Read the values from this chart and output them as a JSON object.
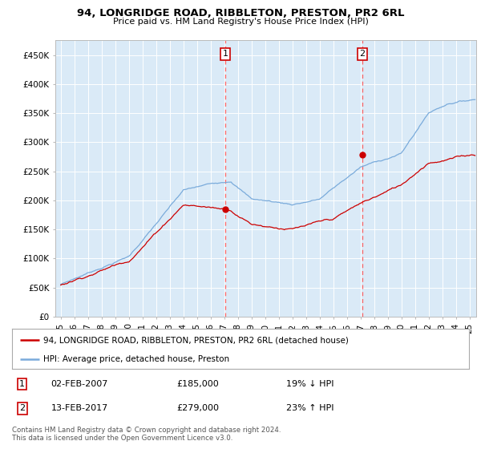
{
  "title": "94, LONGRIDGE ROAD, RIBBLETON, PRESTON, PR2 6RL",
  "subtitle": "Price paid vs. HM Land Registry's House Price Index (HPI)",
  "yticks": [
    0,
    50000,
    100000,
    150000,
    200000,
    250000,
    300000,
    350000,
    400000,
    450000
  ],
  "ytick_labels": [
    "£0",
    "£50K",
    "£100K",
    "£150K",
    "£200K",
    "£250K",
    "£300K",
    "£350K",
    "£400K",
    "£450K"
  ],
  "xlim_start": 1994.6,
  "xlim_end": 2025.5,
  "ylim_min": 0,
  "ylim_max": 475000,
  "sale1_date": 2007.08,
  "sale1_price": 185000,
  "sale1_label": "1",
  "sale2_date": 2017.12,
  "sale2_price": 279000,
  "sale2_label": "2",
  "hpi_color": "#7aabdb",
  "price_color": "#cc0000",
  "marker_color": "#cc0000",
  "vline_color": "#ff6666",
  "bg_color": "#daeaf7",
  "legend_line1": "94, LONGRIDGE ROAD, RIBBLETON, PRESTON, PR2 6RL (detached house)",
  "legend_line2": "HPI: Average price, detached house, Preston",
  "table_row1": [
    "1",
    "02-FEB-2007",
    "£185,000",
    "19% ↓ HPI"
  ],
  "table_row2": [
    "2",
    "13-FEB-2017",
    "£279,000",
    "23% ↑ HPI"
  ],
  "footnote": "Contains HM Land Registry data © Crown copyright and database right 2024.\nThis data is licensed under the Open Government Licence v3.0.",
  "xtick_years": [
    1995,
    1996,
    1997,
    1998,
    1999,
    2000,
    2001,
    2002,
    2003,
    2004,
    2005,
    2006,
    2007,
    2008,
    2009,
    2010,
    2011,
    2012,
    2013,
    2014,
    2015,
    2016,
    2017,
    2018,
    2019,
    2020,
    2021,
    2022,
    2023,
    2024,
    2025
  ]
}
